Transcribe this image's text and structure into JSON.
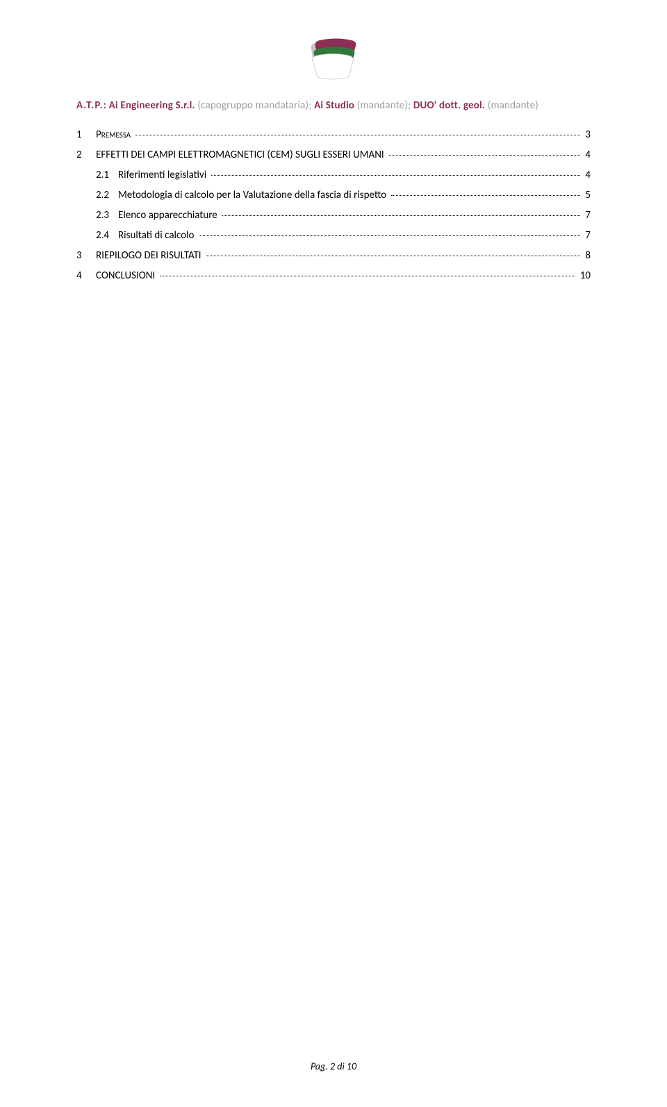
{
  "logo": {
    "colors": {
      "shadow": "#c8c3bb",
      "dark_red": "#8b2f55",
      "green": "#2f7a3a",
      "white": "#ffffff"
    }
  },
  "header": {
    "atp": "A.T.P.",
    "sep": ": ",
    "company1": "Ai Engineering S.r.l.",
    "role1": " (capogruppo mandataria); ",
    "company2": "Ai Studio",
    "role2": " (mandante); ",
    "company3": "DUO' dott. geol.",
    "role3": " (mandante)",
    "text_color": "#8b2f55",
    "light_color": "#9a9a9a",
    "font_size": 15
  },
  "toc": {
    "font_size": 15,
    "text_color": "#000000",
    "items": [
      {
        "num": "1",
        "label": "Premessa",
        "page": "3",
        "level": 0,
        "smallcaps": true
      },
      {
        "num": "2",
        "label": "EFFETTI DEI CAMPI ELETTROMAGNETICI (CEM) SUGLI ESSERI UMANI",
        "page": "4",
        "level": 0,
        "smallcaps": false
      },
      {
        "num": "2.1",
        "label": "Riferimenti legislativi",
        "page": "4",
        "level": 1,
        "smallcaps": false
      },
      {
        "num": "2.2",
        "label": "Metodologia di calcolo per la Valutazione della fascia di rispetto",
        "page": "5",
        "level": 1,
        "smallcaps": false
      },
      {
        "num": "2.3",
        "label": "Elenco apparecchiature",
        "page": "7",
        "level": 1,
        "smallcaps": false
      },
      {
        "num": "2.4",
        "label": "Risultati di calcolo",
        "page": "7",
        "level": 1,
        "smallcaps": false
      },
      {
        "num": "3",
        "label": "RIEPILOGO DEI RISULTATI",
        "page": "8",
        "level": 0,
        "smallcaps": false
      },
      {
        "num": "4",
        "label": "CONCLUSIONI",
        "page": "10",
        "level": 0,
        "smallcaps": false
      }
    ]
  },
  "footer": {
    "text": "Pag. 2 di 10",
    "font_size": 14,
    "font_style": "italic"
  }
}
